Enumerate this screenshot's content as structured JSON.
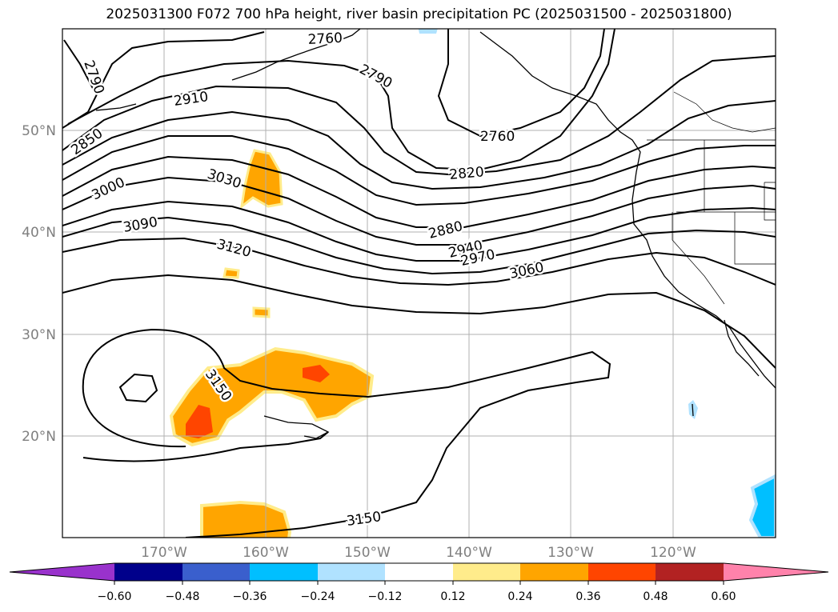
{
  "title": "2025031300 F072 700 hPa height, river basin precipitation PC (2025031500 - 2025031800)",
  "map": {
    "lat_labels": [
      "50°N",
      "40°N",
      "30°N",
      "20°N"
    ],
    "lon_labels": [
      "170°W",
      "160°W",
      "150°W",
      "140°W",
      "130°W",
      "120°W"
    ],
    "contour_labels": [
      "2760",
      "2790",
      "2790",
      "2910",
      "2850",
      "3000",
      "3030",
      "3090",
      "3120",
      "2760",
      "2820",
      "2880",
      "2940",
      "2970",
      "3060",
      "3150",
      "3150"
    ]
  },
  "colorbar": {
    "ticks": [
      "−0.60",
      "−0.48",
      "−0.36",
      "−0.24",
      "−0.12",
      "0.12",
      "0.24",
      "0.36",
      "0.48",
      "0.60"
    ],
    "colors": [
      "#9932cc",
      "#00008b",
      "#3a5fcd",
      "#00bfff",
      "#b0e2ff",
      "#ffffff",
      "#ffec8b",
      "#ffa500",
      "#ff4500",
      "#b22222",
      "#ff82ab"
    ]
  }
}
